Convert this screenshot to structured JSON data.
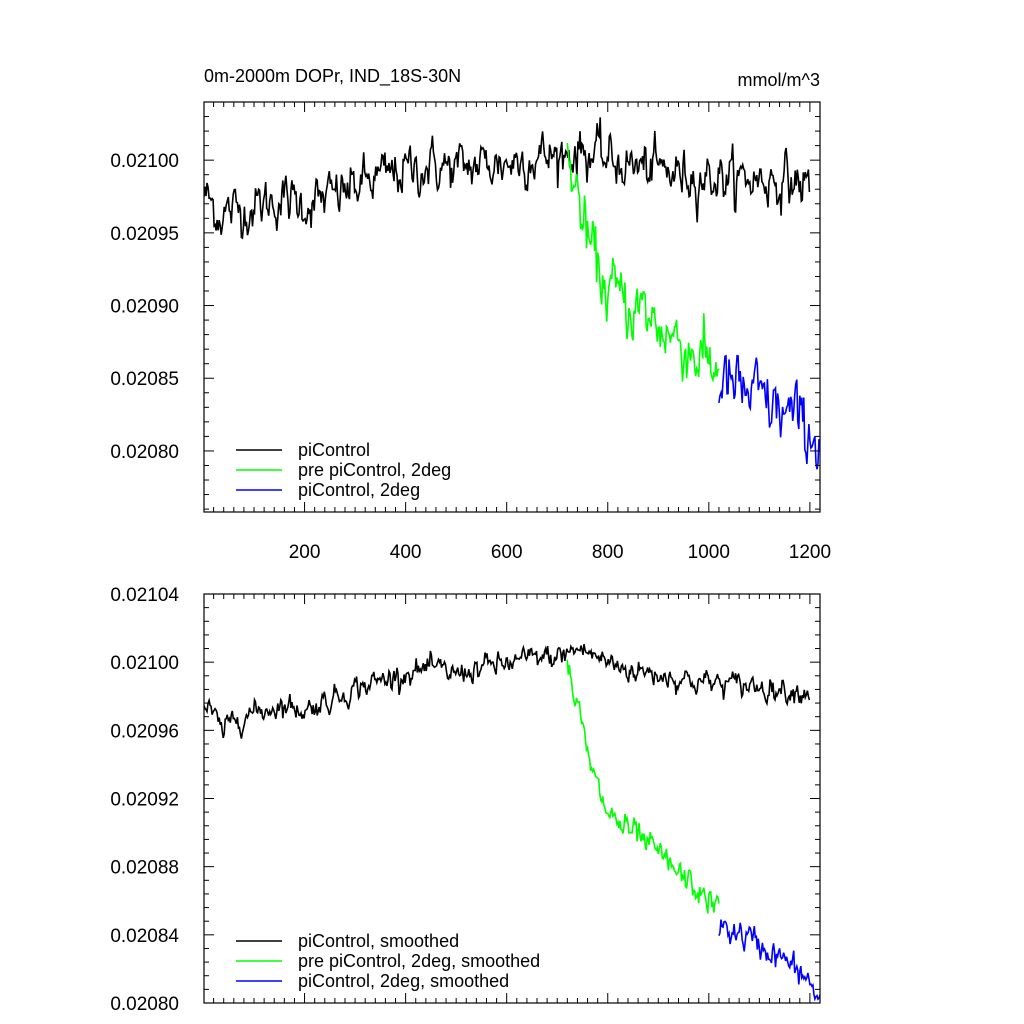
{
  "chart_data": [
    {
      "type": "line",
      "title_left": "0m-2000m DOPr, IND_18S-30N",
      "title_right": "mmol/m^3",
      "xlabel": "",
      "ylabel": "",
      "xlim": [
        1,
        1220
      ],
      "ylim": [
        0.020758,
        0.02104
      ],
      "x_ticks": [
        200,
        400,
        600,
        800,
        1000,
        1200
      ],
      "x_tick_labels": [
        "200",
        "400",
        "600",
        "800",
        "1000",
        "1200"
      ],
      "y_ticks": [
        0.0208,
        0.02085,
        0.0209,
        0.02095,
        0.021
      ],
      "y_tick_labels": [
        "0.02080",
        "0.02085",
        "0.02090",
        "0.02095",
        "0.02100"
      ],
      "legend_position": "bottom-left",
      "series": [
        {
          "name": "piControl",
          "color": "#000000",
          "noise": 1.8e-05,
          "x": [
            1,
            30,
            60,
            100,
            150,
            200,
            250,
            300,
            350,
            400,
            450,
            500,
            550,
            600,
            650,
            700,
            745,
            800,
            850,
            900,
            950,
            1000,
            1050,
            1100,
            1150,
            1200
          ],
          "y": [
            0.020977,
            0.020963,
            0.020965,
            0.020968,
            0.020973,
            0.02097,
            0.020974,
            0.020982,
            0.020988,
            0.020993,
            0.020996,
            0.020994,
            0.020997,
            0.020998,
            0.021002,
            0.021003,
            0.021007,
            0.021,
            0.020996,
            0.020993,
            0.02099,
            0.020989,
            0.020987,
            0.020987,
            0.020986,
            0.020983
          ]
        },
        {
          "name": "pre piControl, 2deg",
          "color": "#00ff00",
          "noise": 2.4e-05,
          "x": [
            720,
            740,
            760,
            780,
            800,
            830,
            860,
            900,
            950,
            1000,
            1020
          ],
          "y": [
            0.021003,
            0.020975,
            0.020945,
            0.020925,
            0.020912,
            0.020903,
            0.020897,
            0.020887,
            0.020873,
            0.02086,
            0.020855
          ]
        },
        {
          "name": "piControl, 2deg",
          "color": "#0000ff",
          "noise": 2.5e-05,
          "x": [
            1020,
            1050,
            1100,
            1150,
            1200,
            1220
          ],
          "y": [
            0.020848,
            0.020843,
            0.020835,
            0.020825,
            0.020815,
            0.020803
          ]
        }
      ]
    },
    {
      "type": "line",
      "title_left": "",
      "title_right": "",
      "xlabel": "",
      "ylabel": "",
      "xlim": [
        1,
        1220
      ],
      "ylim": [
        0.0208,
        0.02104
      ],
      "x_ticks": [
        200,
        400,
        600,
        800,
        1000,
        1200
      ],
      "x_tick_labels": [],
      "y_ticks": [
        0.0208,
        0.02084,
        0.02088,
        0.02092,
        0.02096,
        0.021,
        0.02104
      ],
      "y_tick_labels": [
        "0.02080",
        "0.02084",
        "0.02088",
        "0.02092",
        "0.02096",
        "0.02100",
        "0.02104"
      ],
      "legend_position": "bottom-left",
      "series": [
        {
          "name": "piControl, smoothed",
          "color": "#000000",
          "noise": 7.5e-06,
          "x": [
            1,
            20,
            40,
            60,
            100,
            150,
            200,
            250,
            300,
            350,
            400,
            450,
            500,
            550,
            600,
            650,
            700,
            745,
            800,
            850,
            900,
            950,
            1000,
            1050,
            1100,
            1150,
            1200
          ],
          "y": [
            0.020975,
            0.020968,
            0.020958,
            0.020968,
            0.02097,
            0.020975,
            0.020972,
            0.020978,
            0.020985,
            0.020989,
            0.020994,
            0.020996,
            0.020993,
            0.020997,
            0.020999,
            0.021002,
            0.021003,
            0.021008,
            0.021,
            0.020995,
            0.020993,
            0.02099,
            0.020988,
            0.020987,
            0.020986,
            0.020984,
            0.020983
          ]
        },
        {
          "name": "pre piControl, 2deg, smoothed",
          "color": "#00ff00",
          "noise": 9e-06,
          "x": [
            720,
            740,
            760,
            780,
            800,
            830,
            860,
            900,
            950,
            1000,
            1020
          ],
          "y": [
            0.020998,
            0.020975,
            0.020945,
            0.020925,
            0.020912,
            0.020903,
            0.020897,
            0.020887,
            0.020873,
            0.02086,
            0.020855
          ]
        },
        {
          "name": "piControl, 2deg, smoothed",
          "color": "#0000ff",
          "noise": 9e-06,
          "x": [
            1020,
            1050,
            1100,
            1150,
            1200,
            1220
          ],
          "y": [
            0.020845,
            0.020842,
            0.020834,
            0.020825,
            0.020812,
            0.0208
          ]
        }
      ]
    }
  ]
}
